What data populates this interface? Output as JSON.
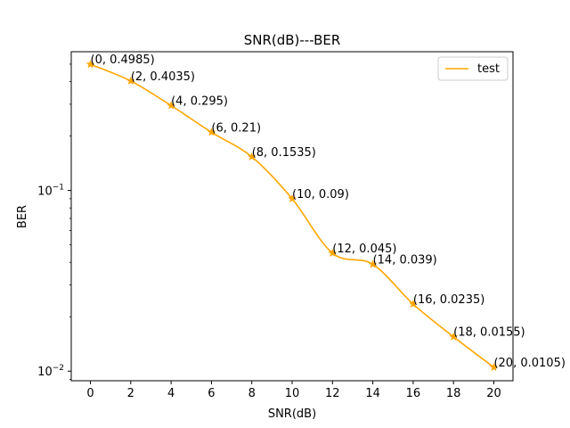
{
  "chart_data": {
    "type": "line",
    "title": "SNR(dB)---BER",
    "xlabel": "SNR(dB)",
    "ylabel": "BER",
    "x_scale": "linear",
    "y_scale": "log",
    "xlim": [
      -0.95,
      20.95
    ],
    "ylim": [
      0.00885,
      0.5858
    ],
    "x_ticks": [
      0,
      2,
      4,
      6,
      8,
      10,
      12,
      14,
      16,
      18,
      20
    ],
    "x_tick_labels": [
      "0",
      "2",
      "4",
      "6",
      "8",
      "10",
      "12",
      "14",
      "16",
      "18",
      "20"
    ],
    "y_ticks": [
      0.1,
      0.01
    ],
    "y_tick_labels": [
      {
        "base": "10",
        "exp": "−1"
      },
      {
        "base": "10",
        "exp": "−2"
      }
    ],
    "grid": false,
    "legend": {
      "position": "top-right"
    },
    "series": [
      {
        "name": "test",
        "color": "#ffa500",
        "marker": "star",
        "x": [
          0,
          2,
          4,
          6,
          8,
          10,
          12,
          14,
          16,
          18,
          20
        ],
        "y": [
          0.4985,
          0.4035,
          0.295,
          0.21,
          0.1535,
          0.09,
          0.045,
          0.039,
          0.0235,
          0.0155,
          0.0105
        ]
      }
    ],
    "annotations": [
      "(0, 0.4985)",
      "(2, 0.4035)",
      "(4, 0.295)",
      "(6, 0.21)",
      "(8, 0.1535)",
      "(10, 0.09)",
      "(12, 0.045)",
      "(14, 0.039)",
      "(16, 0.0235)",
      "(18, 0.0155)",
      "(20, 0.0105)"
    ]
  }
}
